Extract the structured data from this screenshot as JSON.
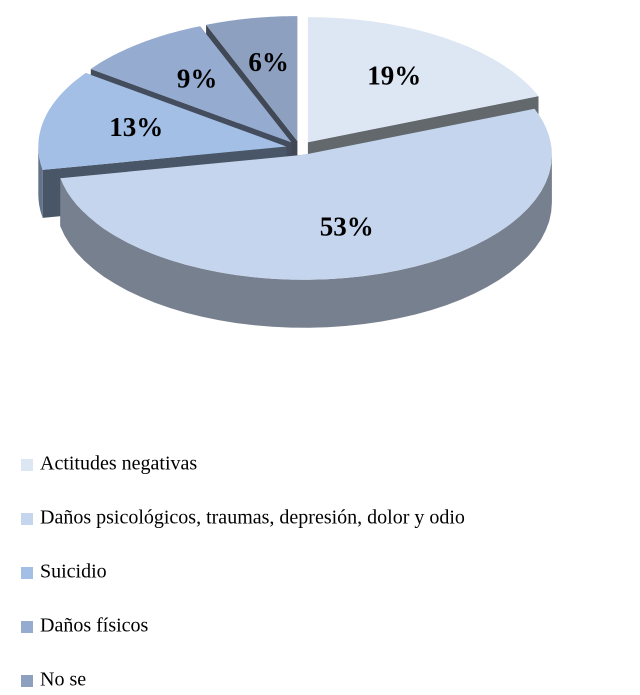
{
  "chart_data": {
    "type": "pie",
    "categories": [
      "Actitudes negativas",
      "Daños psicológicos, traumas, depresión, dolor y odio",
      "Suicidio",
      "Daños físicos",
      "No se"
    ],
    "values": [
      19,
      53,
      13,
      9,
      6
    ],
    "value_labels": [
      "19%",
      "53%",
      "13%",
      "9%",
      "6%"
    ],
    "colors": [
      "#dde6f3",
      "#c6d5ee",
      "#a3bfe6",
      "#95abd0",
      "#8ea0c0"
    ]
  }
}
